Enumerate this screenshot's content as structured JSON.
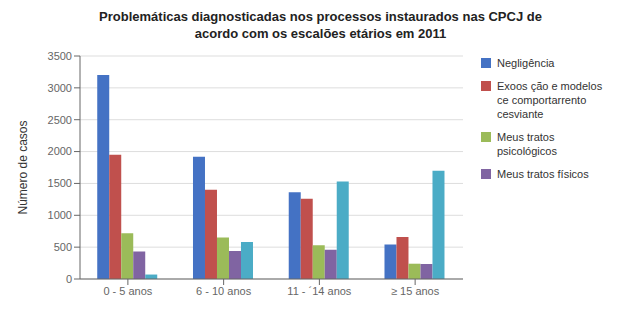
{
  "chart_data": {
    "type": "bar",
    "title": "Problemáticas diagnosticadas nos processos instaurados nas CPCJ de\nacordo com os escalões etários em 2011",
    "categories": [
      "0 - 5 anos",
      "6 - 10 anos",
      "11 - ´14 anos",
      "≥ 15 anos"
    ],
    "series": [
      {
        "name": "Negligência",
        "color": "#4472C4",
        "values": [
          3200,
          1920,
          1360,
          540
        ]
      },
      {
        "name": "Exoos ção e modelos\nce comportarrento\ncesviante",
        "color": "#C0504D",
        "values": [
          1950,
          1400,
          1260,
          660
        ]
      },
      {
        "name": "Meus tratos\npsicológicos",
        "color": "#9BBB59",
        "values": [
          720,
          650,
          530,
          240
        ]
      },
      {
        "name": "Meus tratos físicos",
        "color": "#8064A2",
        "values": [
          430,
          440,
          460,
          235
        ]
      },
      {
        "color": "#4BACC6",
        "values": [
          70,
          580,
          1530,
          1700
        ]
      }
    ],
    "ylabel": "Número de casos",
    "ylim": [
      0,
      3500
    ],
    "yticks": [
      0,
      500,
      1000,
      1500,
      2000,
      2500,
      3000,
      3500
    ],
    "grid": true,
    "legend": "right"
  }
}
